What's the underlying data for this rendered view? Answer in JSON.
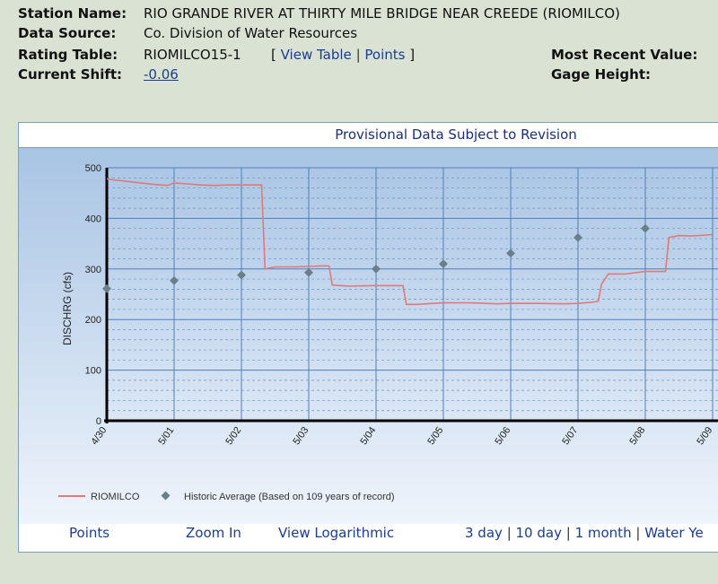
{
  "info": {
    "station_label": "Station Name:",
    "station_value": "RIO GRANDE RIVER AT THIRTY MILE BRIDGE NEAR CREEDE (RIOMILCO)",
    "source_label": "Data Source:",
    "source_value": "Co. Division of Water Resources",
    "rating_label": "Rating Table:",
    "rating_value": "RIOMILCO15-1",
    "view_table": "View Table",
    "points": "Points",
    "shift_label": "Current Shift:",
    "shift_value": "-0.06",
    "recent_label": "Most Recent Value:",
    "gage_label": "Gage Height:"
  },
  "chart_title": "Provisional Data Subject to Revision",
  "footer": {
    "points": "Points",
    "zoom_in": "Zoom In",
    "view_log": "View Logarithmic",
    "day3": "3 day",
    "day10": "10 day",
    "month1": "1 month",
    "water_year": "Water Ye"
  },
  "colors": {
    "discharge_line": "#e07a7a",
    "historic_marker": "#6a7f8a",
    "plot_bg_top": "#a8c4e4",
    "plot_bg_bottom": "#eef4fb",
    "grid": "#4f7fb8"
  },
  "chart_data": {
    "type": "line",
    "ylabel": "DISCHRG (cfs)",
    "ylim": [
      0,
      500
    ],
    "y_ticks": [
      0,
      100,
      200,
      300,
      400,
      500
    ],
    "x_tick_labels": [
      "4/30",
      "5/01",
      "5/02",
      "5/03",
      "5/04",
      "5/05",
      "5/06",
      "5/07",
      "5/08",
      "5/09"
    ],
    "x_unit": "day index from 4/30",
    "grid": true,
    "legend_position": "bottom-left",
    "series": [
      {
        "name": "RIOMILCO",
        "kind": "line",
        "points": [
          [
            0,
            478
          ],
          [
            0.1,
            476
          ],
          [
            0.3,
            473
          ],
          [
            0.5,
            470
          ],
          [
            0.7,
            467
          ],
          [
            0.9,
            465
          ],
          [
            1.0,
            470
          ],
          [
            1.2,
            468
          ],
          [
            1.4,
            466
          ],
          [
            1.6,
            465
          ],
          [
            1.8,
            466
          ],
          [
            2.0,
            466
          ],
          [
            2.2,
            466
          ],
          [
            2.3,
            466
          ],
          [
            2.35,
            300
          ],
          [
            2.5,
            304
          ],
          [
            2.8,
            304
          ],
          [
            3.0,
            305
          ],
          [
            3.2,
            306
          ],
          [
            3.3,
            306
          ],
          [
            3.35,
            268
          ],
          [
            3.6,
            266
          ],
          [
            3.9,
            267
          ],
          [
            4.2,
            267
          ],
          [
            4.4,
            267
          ],
          [
            4.45,
            230
          ],
          [
            4.6,
            230
          ],
          [
            5.0,
            233
          ],
          [
            5.4,
            233
          ],
          [
            5.8,
            231
          ],
          [
            6.0,
            232
          ],
          [
            6.4,
            232
          ],
          [
            6.8,
            231
          ],
          [
            7.0,
            232
          ],
          [
            7.2,
            234
          ],
          [
            7.3,
            236
          ],
          [
            7.35,
            270
          ],
          [
            7.45,
            290
          ],
          [
            7.7,
            290
          ],
          [
            8.0,
            295
          ],
          [
            8.2,
            295
          ],
          [
            8.3,
            295
          ],
          [
            8.35,
            362
          ],
          [
            8.5,
            366
          ],
          [
            8.7,
            365
          ],
          [
            8.9,
            367
          ],
          [
            9.0,
            368
          ]
        ]
      },
      {
        "name": "Historic Average (Based on 109 years of record)",
        "kind": "scatter",
        "points": [
          [
            0,
            261
          ],
          [
            1,
            277
          ],
          [
            2,
            288
          ],
          [
            3,
            293
          ],
          [
            4,
            300
          ],
          [
            5,
            310
          ],
          [
            6,
            331
          ],
          [
            7,
            362
          ],
          [
            8,
            380
          ]
        ]
      }
    ]
  }
}
